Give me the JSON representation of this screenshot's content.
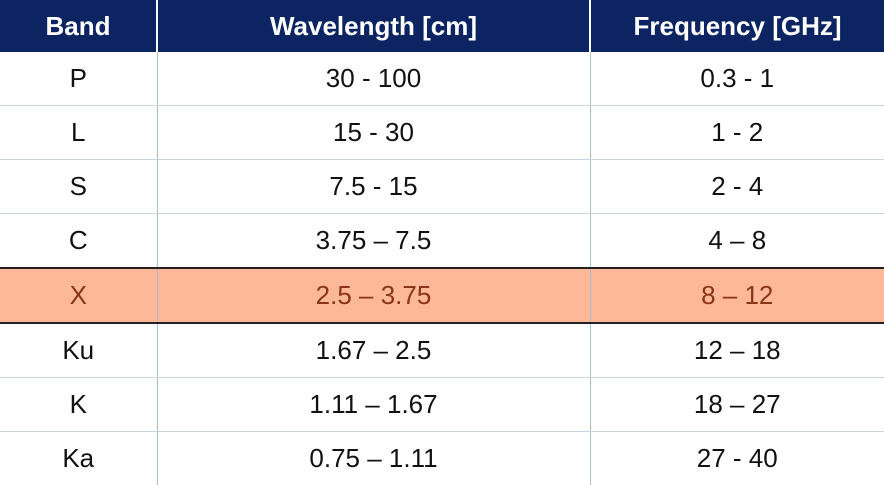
{
  "table": {
    "header": [
      "Band",
      "Wavelength [cm]",
      "Frequency [GHz]"
    ],
    "rows": [
      [
        "P",
        "30 - 100",
        "0.3 - 1"
      ],
      [
        "L",
        "15 - 30",
        "1 - 2"
      ],
      [
        "S",
        "7.5 - 15",
        "2 - 4"
      ],
      [
        "C",
        "3.75 – 7.5",
        "4 – 8"
      ],
      [
        "X",
        "2.5 – 3.75",
        "8 – 12"
      ],
      [
        "Ku",
        "1.67 – 2.5",
        "12 – 18"
      ],
      [
        "K",
        "1.11 – 1.67",
        "18 – 27"
      ],
      [
        "Ka",
        "0.75 – 1.11",
        "27 - 40"
      ]
    ]
  }
}
